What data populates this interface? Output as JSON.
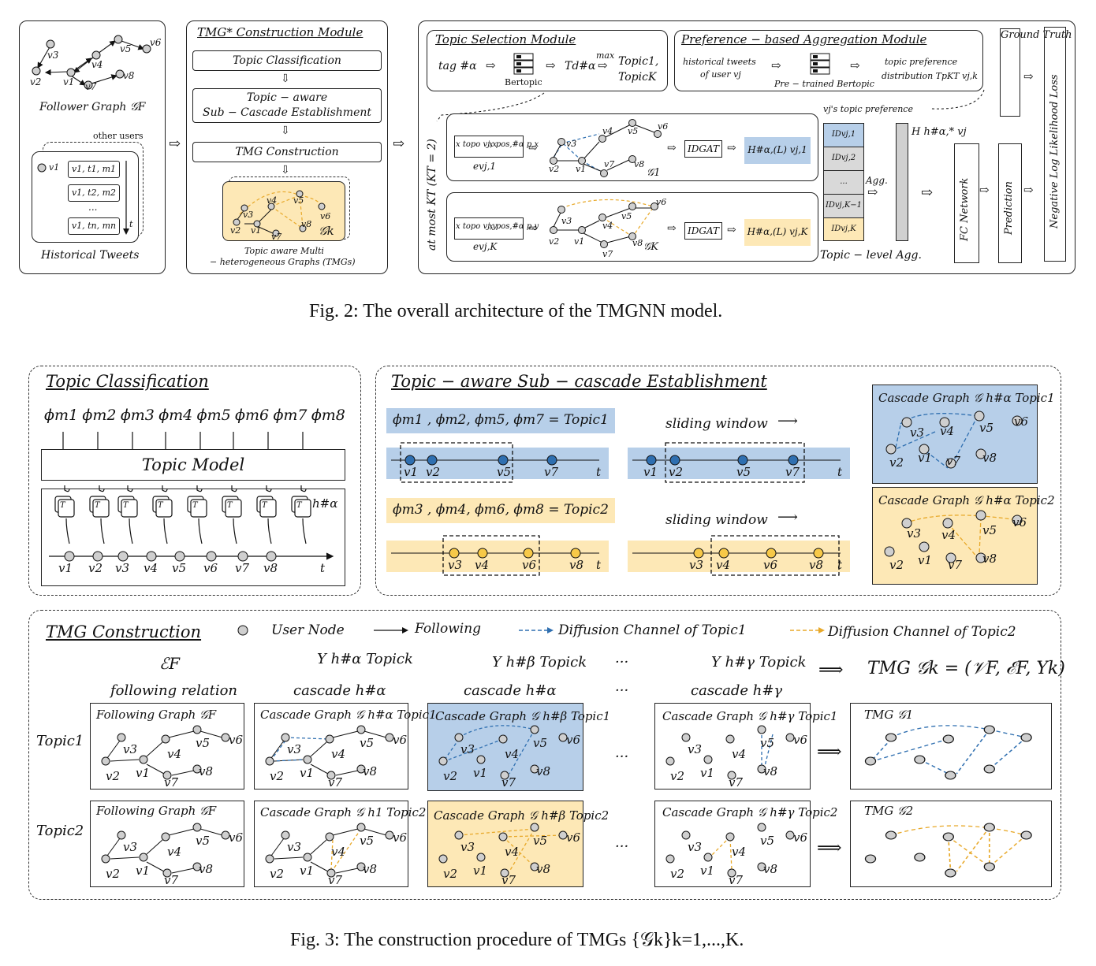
{
  "fig2": {
    "caption": "Fig. 2: The overall architecture of the TMGNN model.",
    "follower_graph_label": "Follower Graph 𝒢F",
    "other_users": "other users",
    "historical_tweets_label": "Historical Tweets",
    "tweet_user": "v1",
    "tweets": [
      "v1, t1, m1",
      "v1, t2, m2",
      "...",
      "v1, tn, mn"
    ],
    "t_axis": "t",
    "tmg_module": {
      "title": "TMG* Construction Module",
      "steps": [
        "Topic Classification",
        "Topic − aware",
        "Sub − Cascade Establishment",
        "TMG Construction"
      ],
      "graph_label": "𝒢k",
      "graph_caption_1": "Topic aware Multi",
      "graph_caption_2": "− heterogeneous Graphs (TMGs)"
    },
    "topic_selection": {
      "title": "Topic Selection Module",
      "tag": "tag #α",
      "bertopic": "Bertopic",
      "td": "Td#α",
      "max": "max",
      "topic1": "Topic1,",
      "topicK": "TopicK"
    },
    "preference": {
      "title": "Preference − based Aggregation Module",
      "hist1": "historical tweets",
      "hist2": "of user vj",
      "pretrained": "Pre − trained Bertopic",
      "pref1": "topic preference",
      "pref2": "distribution TpKT vj,k",
      "vj_pref": "vj's topic preference"
    },
    "at_most": "at most KT (KT = 2)",
    "rows": [
      {
        "x1": "x topo vj,x",
        "x2": "x pos,#α p,x",
        "e": "evj,1",
        "g": "𝒢1",
        "idgat": "IDGAT",
        "h": "H#α,(L) vj,1"
      },
      {
        "x1": "x topo vj,y",
        "x2": "x pos,#α p,y",
        "e": "evj,K",
        "g": "𝒢K",
        "idgat": "IDGAT",
        "h": "H#α,(L) vj,K"
      }
    ],
    "id_cells": [
      "IDvj,1",
      "IDvj,2",
      "...",
      "IDvj,K−1",
      "IDvj,K"
    ],
    "agg": "Agg.",
    "topic_level_agg": "Topic − level Agg.",
    "h_star": "H h#α,* vj",
    "fc_network": "FC Network",
    "prediction": "Prediction",
    "ground_truth": "Ground Truth",
    "nll": "Negative Log Likelihood Loss"
  },
  "fig3": {
    "caption": "Fig. 3: The construction procedure of TMGs {𝒢k}k=1,...,K.",
    "topic_classification": {
      "title": "Topic Classification",
      "phis": [
        "ϕm1",
        "ϕm2",
        "ϕm3",
        "ϕm4",
        "ϕm5",
        "ϕm6",
        "ϕm7",
        "ϕm8"
      ],
      "topic_model": "Topic Model",
      "h": "h#α",
      "nodes": [
        "v1",
        "v2",
        "v3",
        "v4",
        "v5",
        "v6",
        "v7",
        "v8"
      ],
      "t": "t"
    },
    "subcascade": {
      "title": "Topic − aware Sub − cascade Establishment",
      "topic1_eq": "ϕm1 , ϕm2, ϕm5, ϕm7 = Topic1",
      "topic2_eq": "ϕm3 , ϕm4, ϕm6, ϕm8 = Topic2",
      "sliding": "sliding window",
      "row1_nodes": [
        "v1",
        "v2",
        "v5",
        "v7"
      ],
      "row2_nodes": [
        "v3",
        "v4",
        "v6",
        "v8"
      ],
      "t": "t",
      "cascade1": "Cascade Graph 𝒢 h#α Topic1",
      "cascade2": "Cascade Graph 𝒢 h#α Topic2"
    },
    "tmg": {
      "title": "TMG Construction",
      "legend_user": "User Node",
      "legend_following": "Following",
      "legend_diff1": "Diffusion Channel of Topic1",
      "legend_diff2": "Diffusion Channel of Topic2",
      "col_headers": [
        "ℰF",
        "Υ h#α Topick",
        "Υ h#β Topick",
        "···",
        "Υ h#γ Topick"
      ],
      "col_sub": [
        "following relation",
        "cascade h#α",
        "cascade h#α",
        "···",
        "cascade h#γ"
      ],
      "tmg_formula": "TMG 𝒢k = (𝒱F, ℰF, Υk)",
      "row_labels": [
        "Topic1",
        "Topic2"
      ],
      "cells_row1": [
        "Following Graph 𝒢F",
        "Cascade Graph 𝒢 h#α Topic1",
        "Cascade Graph 𝒢 h#β Topic1",
        "Cascade Graph 𝒢 h#γ Topic1",
        "TMG 𝒢1"
      ],
      "cells_row2": [
        "Following Graph 𝒢F",
        "Cascade Graph 𝒢 h1 Topic2",
        "Cascade Graph 𝒢 h#β Topic2",
        "Cascade Graph 𝒢 h#γ Topic2",
        "TMG 𝒢2"
      ],
      "dots": "···"
    },
    "node_labels": [
      "v1",
      "v2",
      "v3",
      "v4",
      "v5",
      "v6",
      "v7",
      "v8"
    ]
  },
  "colors": {
    "blue_fill": "#b7cfe9",
    "yellow_fill": "#fde8b6",
    "blue_edge": "#2f6fb0",
    "yellow_edge": "#e8a92a",
    "node": "#cfcfcf"
  }
}
